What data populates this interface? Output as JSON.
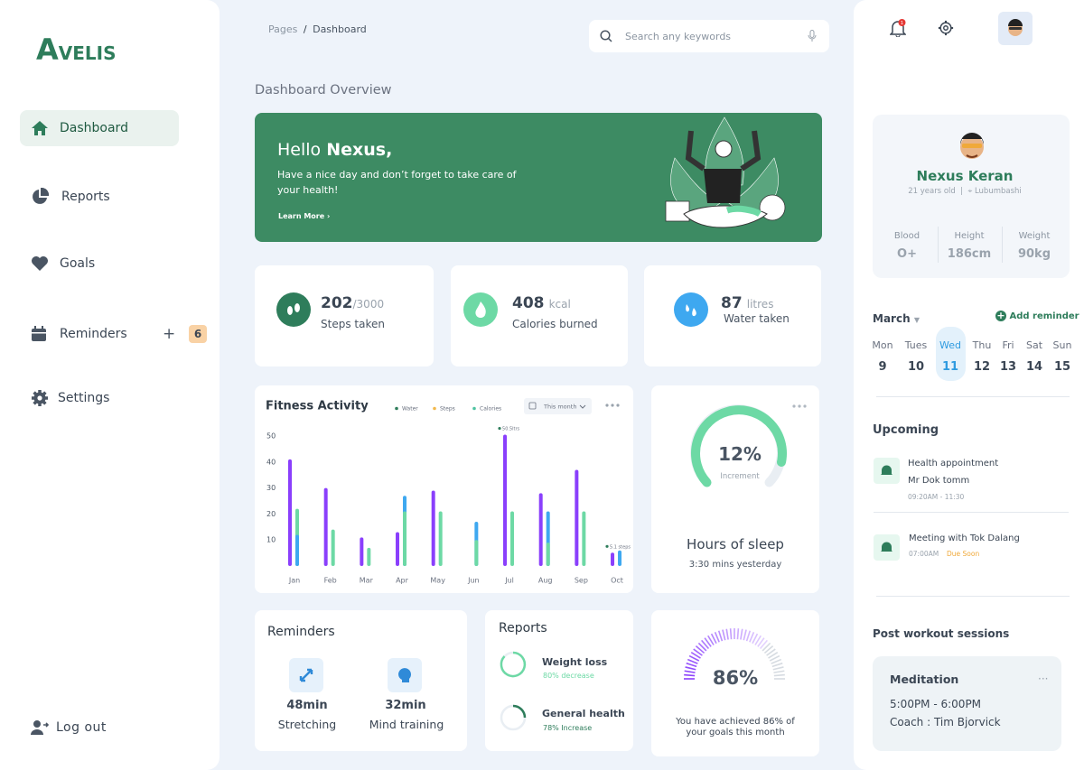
{
  "sidebar": {
    "logo": "AVELIS",
    "nav": [
      {
        "label": "Dashboard"
      },
      {
        "label": "Reports"
      },
      {
        "label": "Goals"
      },
      {
        "label": "Reminders",
        "action": "+",
        "badge": 6
      },
      {
        "label": "Settings"
      }
    ],
    "logout": "Log out"
  },
  "header": {
    "breadcrumb": [
      "Pages",
      "/",
      "Dashboard"
    ],
    "search_placeholder": "Search any keywords",
    "notification_count": 1
  },
  "page_title": "Dashboard Overview",
  "banner": {
    "greeting": "Hello",
    "name": "Nexus,",
    "message": "Have a nice day and don’t forget to take care of your health!",
    "link": "Learn More"
  },
  "stats": [
    {
      "value": 202,
      "unit": "/3000",
      "label": "Steps taken"
    },
    {
      "value": 408,
      "unit": "kcal",
      "label": "Calories burned"
    },
    {
      "value": 87,
      "unit": "litres",
      "label": "Water taken"
    }
  ],
  "fitness_activity": {
    "type": "bar",
    "title": "Fitness Activity",
    "period": "This month",
    "categories": [
      "Jan",
      "Feb",
      "Mar",
      "Apr",
      "May",
      "Jun",
      "Jul",
      "Aug",
      "Sep",
      "Oct"
    ],
    "series": [
      {
        "name": "Water",
        "color": "#3ea8f0",
        "dot_color": "#2e7d5b",
        "values": [
          12,
          null,
          null,
          27,
          null,
          17,
          null,
          21,
          null,
          6
        ]
      },
      {
        "name": "Steps",
        "color": "#8a3ffc",
        "dot_color": "#f2b84b",
        "values": [
          41,
          30,
          11,
          13,
          29,
          null,
          50.5,
          28,
          37,
          5.1
        ],
        "value_labels": [
          null,
          null,
          null,
          null,
          null,
          null,
          "50.5ltrs",
          null,
          null,
          "5.1 steps"
        ]
      },
      {
        "name": "Calories",
        "color": "#6dd9a5",
        "dot_color": "#4fc3a1",
        "values": [
          22,
          14,
          7,
          21,
          21,
          10,
          21,
          9,
          21,
          null
        ]
      }
    ],
    "ylim": [
      0,
      50
    ],
    "yticks": [
      10,
      20,
      30,
      40,
      50
    ]
  },
  "sleep": {
    "value": "12%",
    "caption": "Increment",
    "title": "Hours of sleep",
    "subtitle": "3:30 mins yesterday"
  },
  "reminders": {
    "title": "Reminders",
    "items": [
      {
        "value": "48min",
        "label": "Stretching"
      },
      {
        "value": "32min",
        "label": "Mind training"
      }
    ]
  },
  "reports": {
    "title": "Reports",
    "items": [
      {
        "label": "Weight loss",
        "change": "80% decrease"
      },
      {
        "label": "General health",
        "change": "78% Increase"
      }
    ]
  },
  "goals": {
    "value": "86%",
    "message": "You have achieved 86% of your goals this month"
  },
  "profile": {
    "name": "Nexus Keran",
    "age": "21 years old",
    "location": "Lubumbashi",
    "metrics": [
      {
        "label": "Blood",
        "value": "O+"
      },
      {
        "label": "Height",
        "value": "186cm"
      },
      {
        "label": "Weight",
        "value": "90kg"
      }
    ]
  },
  "calendar": {
    "month": "March",
    "action": "Add reminder",
    "days": [
      {
        "day": "Mon",
        "date": 9
      },
      {
        "day": "Tues",
        "date": 10
      },
      {
        "day": "Wed",
        "date": 11
      },
      {
        "day": "Thu",
        "date": 12
      },
      {
        "day": "Fri",
        "date": 13
      },
      {
        "day": "Sat",
        "date": 14
      },
      {
        "day": "Sun",
        "date": 15
      }
    ]
  },
  "upcoming": {
    "title": "Upcoming",
    "items": [
      {
        "title": "Health appointment",
        "subtitle": "Mr Dok tomm",
        "time": "09:20AM - 11:30"
      },
      {
        "title": "Meeting with Tok Dalang",
        "time": "07:00AM",
        "status": "Due Soon"
      }
    ]
  },
  "post_workout": {
    "title": "Post workout sessions",
    "sessions": [
      {
        "name": "Meditation",
        "time": "5:00PM - 6:00PM",
        "coach": "Coach : Tim Bjorvick"
      }
    ]
  }
}
